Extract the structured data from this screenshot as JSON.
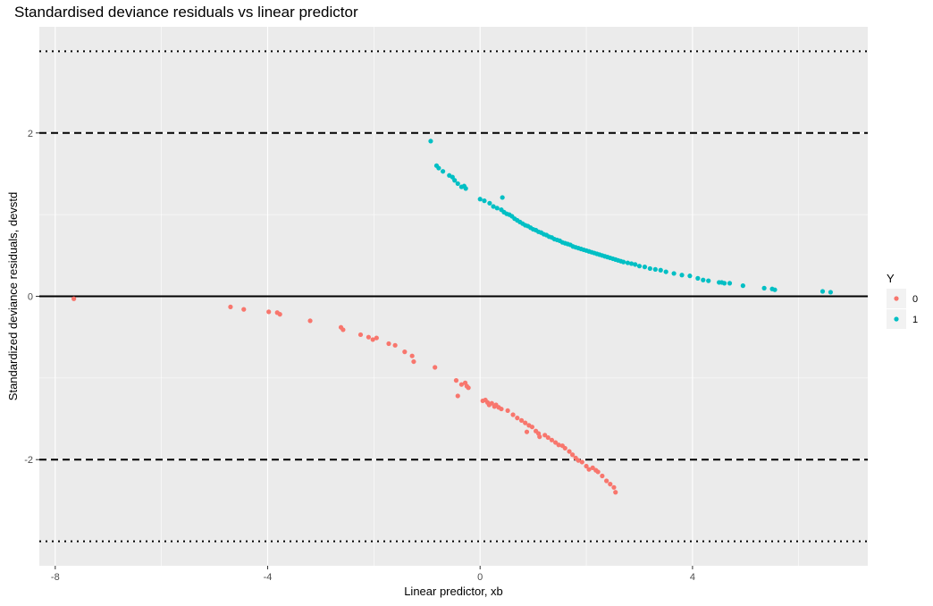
{
  "chart_data": {
    "type": "scatter",
    "title": "Standardised deviance residuals vs linear predictor",
    "xlabel": "Linear predictor, xb",
    "ylabel": "Standardized deviance residuals, devstd",
    "xlim": [
      -8.3,
      7.3
    ],
    "ylim": [
      -3.3,
      3.3
    ],
    "x_ticks": [
      -8,
      -4,
      0,
      4
    ],
    "y_ticks": [
      -2,
      0,
      2
    ],
    "grid": true,
    "background": "#EBEBEB",
    "legend": {
      "title": "Y",
      "position": "right"
    },
    "reference_lines": [
      {
        "y": 0,
        "style": "solid"
      },
      {
        "y": 2,
        "style": "dashed"
      },
      {
        "y": -2,
        "style": "dashed"
      },
      {
        "y": 3,
        "style": "dotted"
      },
      {
        "y": -3,
        "style": "dotted"
      }
    ],
    "series": [
      {
        "name": "0",
        "color": "#F8766D",
        "points": [
          [
            -7.65,
            -0.03
          ],
          [
            -4.7,
            -0.13
          ],
          [
            -4.45,
            -0.16
          ],
          [
            -3.98,
            -0.19
          ],
          [
            -3.82,
            -0.2
          ],
          [
            -3.77,
            -0.22
          ],
          [
            -3.2,
            -0.3
          ],
          [
            -2.62,
            -0.38
          ],
          [
            -2.58,
            -0.41
          ],
          [
            -2.25,
            -0.47
          ],
          [
            -2.1,
            -0.5
          ],
          [
            -2.02,
            -0.53
          ],
          [
            -1.95,
            -0.51
          ],
          [
            -1.72,
            -0.58
          ],
          [
            -1.6,
            -0.6
          ],
          [
            -1.42,
            -0.68
          ],
          [
            -1.28,
            -0.73
          ],
          [
            -1.25,
            -0.8
          ],
          [
            -0.85,
            -0.87
          ],
          [
            -0.45,
            -1.03
          ],
          [
            -0.35,
            -1.08
          ],
          [
            -0.28,
            -1.06
          ],
          [
            -0.25,
            -1.1
          ],
          [
            -0.22,
            -1.12
          ],
          [
            -0.42,
            -1.22
          ],
          [
            0.05,
            -1.28
          ],
          [
            0.1,
            -1.27
          ],
          [
            0.14,
            -1.3
          ],
          [
            0.17,
            -1.33
          ],
          [
            0.22,
            -1.31
          ],
          [
            0.27,
            -1.35
          ],
          [
            0.3,
            -1.33
          ],
          [
            0.35,
            -1.36
          ],
          [
            0.4,
            -1.38
          ],
          [
            0.52,
            -1.4
          ],
          [
            0.62,
            -1.45
          ],
          [
            0.7,
            -1.49
          ],
          [
            0.78,
            -1.52
          ],
          [
            0.85,
            -1.55
          ],
          [
            0.92,
            -1.58
          ],
          [
            0.98,
            -1.6
          ],
          [
            0.88,
            -1.66
          ],
          [
            1.05,
            -1.65
          ],
          [
            1.1,
            -1.68
          ],
          [
            1.12,
            -1.72
          ],
          [
            1.22,
            -1.7
          ],
          [
            1.28,
            -1.73
          ],
          [
            1.35,
            -1.76
          ],
          [
            1.42,
            -1.79
          ],
          [
            1.48,
            -1.82
          ],
          [
            1.55,
            -1.83
          ],
          [
            1.6,
            -1.86
          ],
          [
            1.68,
            -1.9
          ],
          [
            1.74,
            -1.94
          ],
          [
            1.8,
            -1.98
          ],
          [
            1.85,
            -2.01
          ],
          [
            1.92,
            -2.03
          ],
          [
            2.0,
            -2.08
          ],
          [
            2.05,
            -2.12
          ],
          [
            2.12,
            -2.1
          ],
          [
            2.18,
            -2.13
          ],
          [
            2.22,
            -2.15
          ],
          [
            2.3,
            -2.2
          ],
          [
            2.38,
            -2.26
          ],
          [
            2.45,
            -2.3
          ],
          [
            2.52,
            -2.34
          ],
          [
            2.55,
            -2.4
          ]
        ]
      },
      {
        "name": "1",
        "color": "#00BFC4",
        "points": [
          [
            -0.93,
            1.9
          ],
          [
            -0.82,
            1.6
          ],
          [
            -0.78,
            1.57
          ],
          [
            -0.7,
            1.53
          ],
          [
            -0.58,
            1.48
          ],
          [
            -0.52,
            1.46
          ],
          [
            -0.48,
            1.42
          ],
          [
            -0.42,
            1.38
          ],
          [
            -0.35,
            1.34
          ],
          [
            -0.3,
            1.35
          ],
          [
            -0.27,
            1.32
          ],
          [
            0.0,
            1.19
          ],
          [
            0.08,
            1.17
          ],
          [
            0.18,
            1.14
          ],
          [
            0.25,
            1.1
          ],
          [
            0.32,
            1.08
          ],
          [
            0.42,
            1.21
          ],
          [
            0.4,
            1.06
          ],
          [
            0.45,
            1.03
          ],
          [
            0.5,
            1.01
          ],
          [
            0.55,
            1.0
          ],
          [
            0.6,
            0.98
          ],
          [
            0.65,
            0.95
          ],
          [
            0.7,
            0.93
          ],
          [
            0.75,
            0.91
          ],
          [
            0.8,
            0.89
          ],
          [
            0.85,
            0.87
          ],
          [
            0.9,
            0.86
          ],
          [
            0.95,
            0.84
          ],
          [
            1.0,
            0.82
          ],
          [
            1.05,
            0.81
          ],
          [
            1.1,
            0.79
          ],
          [
            1.15,
            0.78
          ],
          [
            1.2,
            0.76
          ],
          [
            1.25,
            0.75
          ],
          [
            1.3,
            0.73
          ],
          [
            1.35,
            0.72
          ],
          [
            1.4,
            0.7
          ],
          [
            1.45,
            0.69
          ],
          [
            1.5,
            0.68
          ],
          [
            1.55,
            0.66
          ],
          [
            1.6,
            0.65
          ],
          [
            1.65,
            0.64
          ],
          [
            1.7,
            0.63
          ],
          [
            1.75,
            0.61
          ],
          [
            1.8,
            0.6
          ],
          [
            1.85,
            0.59
          ],
          [
            1.9,
            0.58
          ],
          [
            1.95,
            0.57
          ],
          [
            2.0,
            0.56
          ],
          [
            2.05,
            0.55
          ],
          [
            2.1,
            0.54
          ],
          [
            2.15,
            0.53
          ],
          [
            2.2,
            0.52
          ],
          [
            2.25,
            0.51
          ],
          [
            2.3,
            0.5
          ],
          [
            2.35,
            0.49
          ],
          [
            2.4,
            0.48
          ],
          [
            2.45,
            0.47
          ],
          [
            2.5,
            0.46
          ],
          [
            2.55,
            0.45
          ],
          [
            2.6,
            0.44
          ],
          [
            2.65,
            0.43
          ],
          [
            2.7,
            0.42
          ],
          [
            2.78,
            0.41
          ],
          [
            2.85,
            0.4
          ],
          [
            2.92,
            0.39
          ],
          [
            3.0,
            0.37
          ],
          [
            3.1,
            0.36
          ],
          [
            3.2,
            0.34
          ],
          [
            3.3,
            0.33
          ],
          [
            3.4,
            0.32
          ],
          [
            3.5,
            0.3
          ],
          [
            3.65,
            0.28
          ],
          [
            3.8,
            0.26
          ],
          [
            3.95,
            0.25
          ],
          [
            4.1,
            0.22
          ],
          [
            4.2,
            0.2
          ],
          [
            4.3,
            0.19
          ],
          [
            4.5,
            0.17
          ],
          [
            4.55,
            0.17
          ],
          [
            4.6,
            0.16
          ],
          [
            4.7,
            0.16
          ],
          [
            4.95,
            0.13
          ],
          [
            5.35,
            0.1
          ],
          [
            5.5,
            0.09
          ],
          [
            5.55,
            0.08
          ],
          [
            6.45,
            0.06
          ],
          [
            6.6,
            0.05
          ]
        ]
      }
    ]
  }
}
